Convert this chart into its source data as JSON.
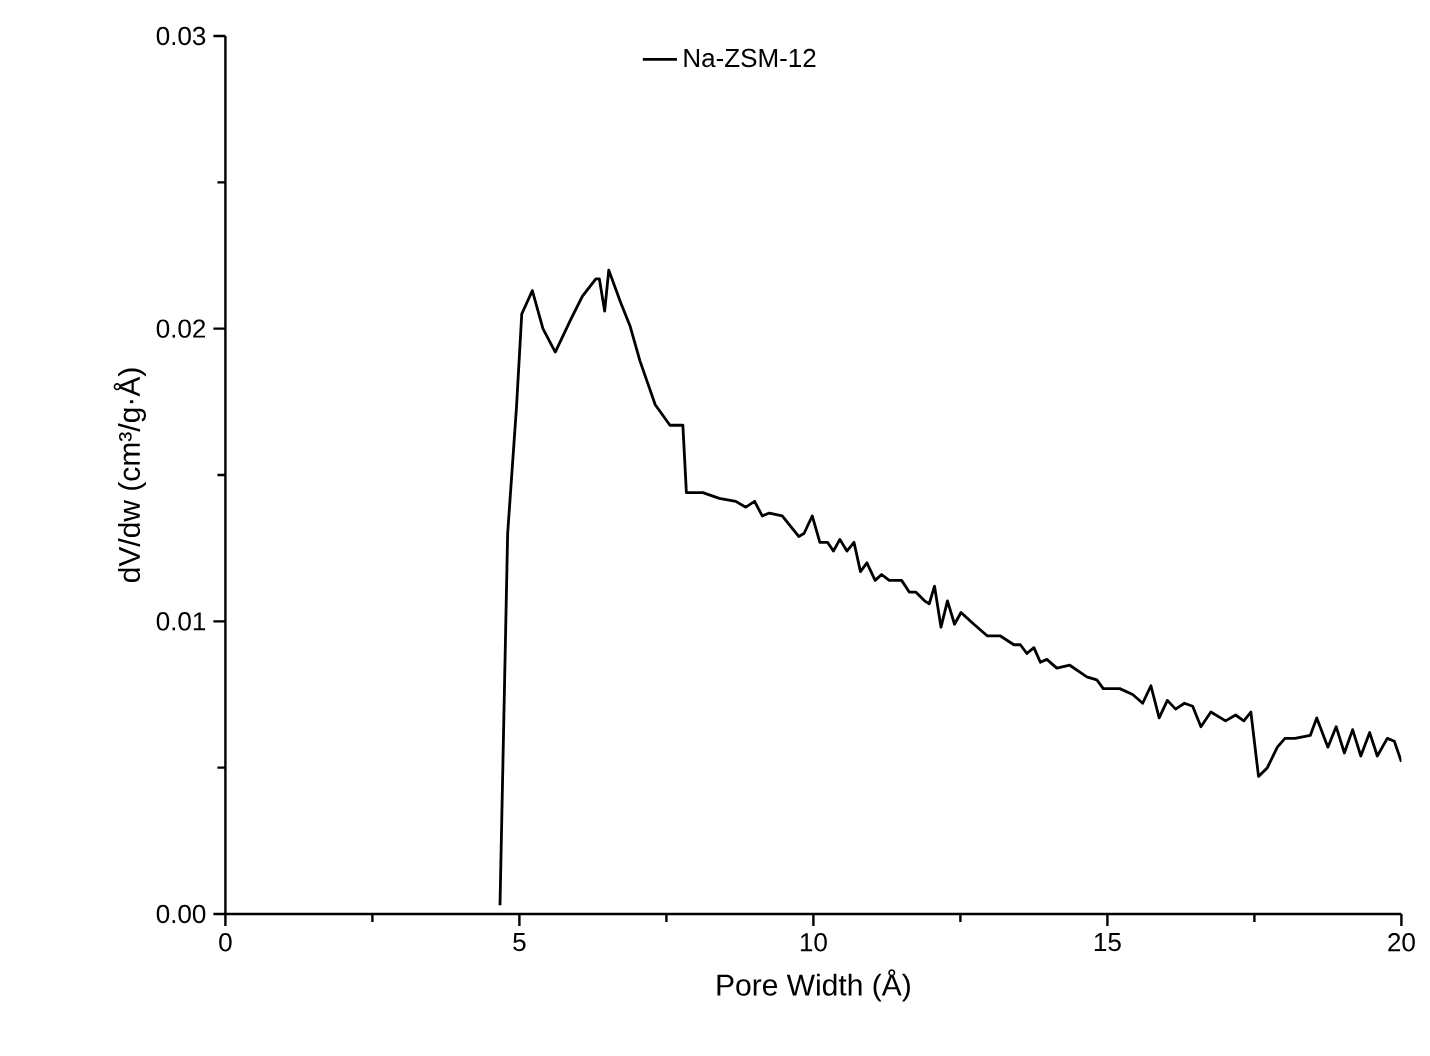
{
  "chart_data": {
    "type": "line",
    "xlabel": "Pore Width (Å)",
    "ylabel": "dV/dw (cm³/g·Å)",
    "xlim": [
      0,
      20
    ],
    "ylim": [
      0,
      0.03
    ],
    "xticks": [
      0,
      5,
      10,
      15,
      20
    ],
    "yticks": [
      {
        "value": 0,
        "label": "0.00"
      },
      {
        "value": 0.01,
        "label": "0.01"
      },
      {
        "value": 0.02,
        "label": "0.02"
      },
      {
        "value": 0.03,
        "label": "0.03"
      }
    ],
    "grid": false,
    "legend": "top",
    "line_style": "solid",
    "marker": "none",
    "series": [
      {
        "name": "Na-ZSM-12",
        "color": "#000000",
        "x": [
          4.67,
          4.8,
          4.95,
          5.04,
          5.22,
          5.4,
          5.61,
          5.87,
          6.07,
          6.3,
          6.36,
          6.45,
          6.52,
          6.72,
          6.88,
          7.05,
          7.31,
          7.56,
          7.78,
          7.84,
          8.12,
          8.4,
          8.68,
          8.85,
          9.0,
          9.13,
          9.25,
          9.47,
          9.75,
          9.84,
          9.98,
          10.11,
          10.24,
          10.34,
          10.45,
          10.57,
          10.69,
          10.8,
          10.91,
          11.05,
          11.16,
          11.29,
          11.5,
          11.63,
          11.74,
          11.89,
          11.97,
          12.06,
          12.17,
          12.28,
          12.4,
          12.51,
          12.73,
          12.96,
          13.18,
          13.41,
          13.52,
          13.63,
          13.75,
          13.86,
          13.97,
          14.14,
          14.36,
          14.65,
          14.82,
          14.93,
          15.21,
          15.43,
          15.6,
          15.74,
          15.88,
          16.02,
          16.16,
          16.31,
          16.45,
          16.59,
          16.76,
          17.01,
          17.18,
          17.32,
          17.44,
          17.57,
          17.72,
          17.89,
          18.02,
          18.19,
          18.45,
          18.56,
          18.75,
          18.89,
          19.03,
          19.17,
          19.31,
          19.46,
          19.59,
          19.76,
          19.88,
          20.0
        ],
        "values": [
          0.0003,
          0.013,
          0.0173,
          0.0205,
          0.0213,
          0.02,
          0.0192,
          0.0203,
          0.0211,
          0.0217,
          0.0217,
          0.0206,
          0.022,
          0.0209,
          0.0201,
          0.0189,
          0.0174,
          0.0167,
          0.0167,
          0.0144,
          0.0144,
          0.0142,
          0.0141,
          0.0139,
          0.0141,
          0.0136,
          0.0137,
          0.0136,
          0.0129,
          0.013,
          0.0136,
          0.0127,
          0.0127,
          0.0124,
          0.0128,
          0.0124,
          0.0127,
          0.0117,
          0.012,
          0.0114,
          0.0116,
          0.0114,
          0.0114,
          0.011,
          0.011,
          0.0107,
          0.0106,
          0.0112,
          0.0098,
          0.0107,
          0.0099,
          0.0103,
          0.0099,
          0.0095,
          0.0095,
          0.0092,
          0.0092,
          0.0089,
          0.0091,
          0.0086,
          0.0087,
          0.0084,
          0.0085,
          0.0081,
          0.008,
          0.0077,
          0.0077,
          0.0075,
          0.0072,
          0.0078,
          0.0067,
          0.0073,
          0.007,
          0.0072,
          0.0071,
          0.0064,
          0.0069,
          0.0066,
          0.0068,
          0.0066,
          0.0069,
          0.0047,
          0.005,
          0.0057,
          0.006,
          0.006,
          0.0061,
          0.0067,
          0.0057,
          0.0064,
          0.0055,
          0.0063,
          0.0054,
          0.0062,
          0.0054,
          0.006,
          0.0059,
          0.0052
        ]
      }
    ]
  }
}
